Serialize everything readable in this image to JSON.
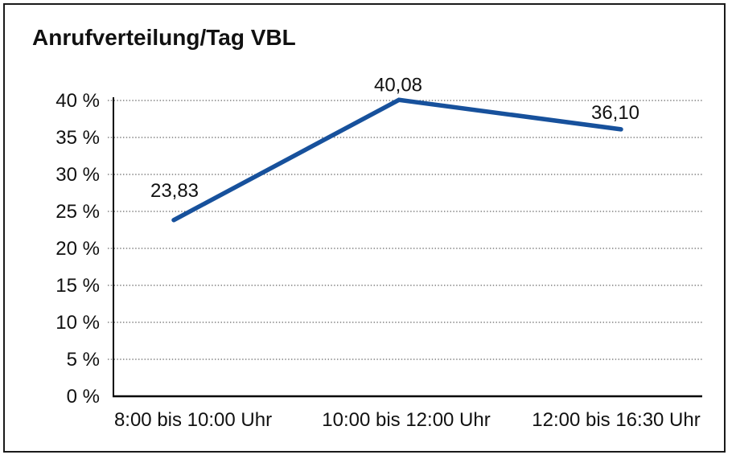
{
  "window": {
    "background": "#ffffff",
    "border_color": "#1a1a1a"
  },
  "chart_data": {
    "type": "line",
    "title": "Anrufverteilung/Tag VBL",
    "categories": [
      "8:00 bis 10:00 Uhr",
      "10:00 bis 12:00 Uhr",
      "12:00 bis 16:30 Uhr"
    ],
    "values": [
      23.83,
      40.08,
      36.1
    ],
    "point_labels": [
      "23,83",
      "40,08",
      "36,10"
    ],
    "series_name": "Anrufverteilung/Tag VBL",
    "xlabel": "",
    "ylabel": "",
    "ylim": [
      0,
      40
    ],
    "ytick_step": 5,
    "ytick_labels": [
      "0 %",
      "5 %",
      "10 %",
      "15 %",
      "20 %",
      "25 %",
      "30 %",
      "35 %",
      "40 %"
    ],
    "grid": "horizontal-dotted",
    "legend": "none",
    "line_color": "#17519c",
    "grid_color": "#3c3c3c",
    "axis_color": "#000000",
    "text_color": "#111111"
  }
}
